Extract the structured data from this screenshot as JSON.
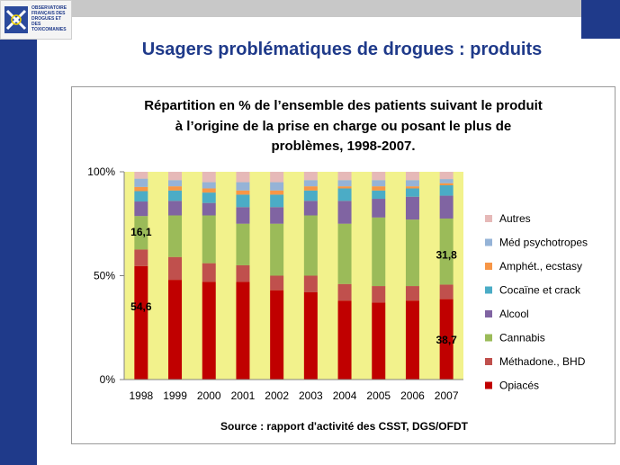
{
  "logo": {
    "text": "OBSERVATOIRE\nFRANÇAIS DES\nDROGUES ET DES\nTOXICOMANIES",
    "icon": "ofdt-logo-icon"
  },
  "slide": {
    "title": "Usagers problématiques de drogues : produits"
  },
  "colors": {
    "brand_blue": "#1f3a8a",
    "plot_background": "#f2f28c"
  },
  "chart_data": {
    "type": "bar",
    "stacked": true,
    "percent": true,
    "title_lines": [
      "Répartition en % de l’ensemble des patients suivant le produit",
      "à l’origine de la prise en charge ou posant le plus de",
      "problèmes, 1998-2007."
    ],
    "source": "Source : rapport d'activité des CSST, DGS/OFDT",
    "categories": [
      "1998",
      "1999",
      "2000",
      "2001",
      "2002",
      "2003",
      "2004",
      "2005",
      "2006",
      "2007"
    ],
    "y_ticks": [
      "0%",
      "50%",
      "100%"
    ],
    "ylim": [
      0,
      100
    ],
    "grid": false,
    "legend_position": "right",
    "series": [
      {
        "name": "Opiacés",
        "color": "#c00000",
        "values": [
          54.6,
          48,
          47,
          47,
          43,
          42,
          38,
          37,
          38,
          38.7
        ]
      },
      {
        "name": "Méthadone., BHD",
        "color": "#c0504d",
        "values": [
          8,
          11,
          9,
          8,
          7,
          8,
          8,
          8,
          7,
          7
        ]
      },
      {
        "name": "Cannabis",
        "color": "#9bbb59",
        "values": [
          16.1,
          20,
          23,
          20,
          25,
          29,
          29,
          33,
          32,
          31.8
        ]
      },
      {
        "name": "Alcool",
        "color": "#8064a2",
        "values": [
          7,
          7,
          6,
          8,
          8,
          7,
          11,
          9,
          11,
          11
        ]
      },
      {
        "name": "Cocaïne et crack",
        "color": "#4bacc6",
        "values": [
          5,
          5,
          5,
          6,
          6,
          5,
          6,
          4,
          4,
          5
        ]
      },
      {
        "name": "Amphét., ecstasy",
        "color": "#f79646",
        "values": [
          2,
          2,
          2,
          2,
          2,
          2,
          1,
          2,
          1,
          1
        ]
      },
      {
        "name": "Méd psychotropes",
        "color": "#95b3d7",
        "values": [
          4,
          3,
          3,
          4,
          4,
          3,
          3,
          3,
          3,
          2
        ]
      },
      {
        "name": "Autres",
        "color": "#e6b9b8",
        "values": [
          3.3,
          4,
          5,
          5,
          5,
          4,
          4,
          4,
          4,
          3.5
        ]
      }
    ],
    "annotations": [
      {
        "text": "54,6",
        "category": "1998",
        "y": 35
      },
      {
        "text": "16,1",
        "category": "1998",
        "y": 71
      },
      {
        "text": "38,7",
        "category": "2007",
        "y": 19
      },
      {
        "text": "31,8",
        "category": "2007",
        "y": 60
      }
    ]
  }
}
